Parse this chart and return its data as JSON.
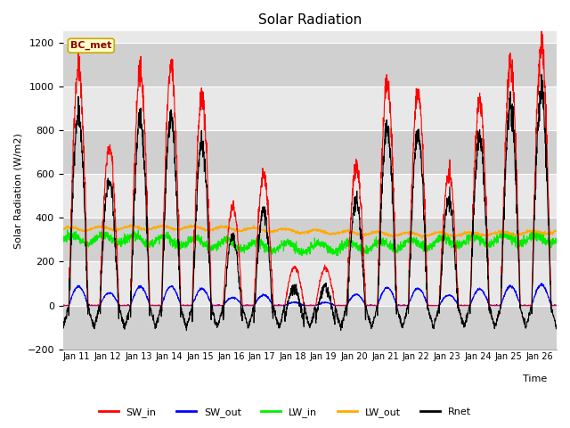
{
  "title": "Solar Radiation",
  "ylabel": "Solar Radiation (W/m2)",
  "xlabel": "Time",
  "annotation": "BC_met",
  "ylim": [
    -200,
    1250
  ],
  "yticks": [
    -200,
    0,
    200,
    400,
    600,
    800,
    1000,
    1200
  ],
  "series": {
    "SW_in": {
      "color": "#ff0000",
      "lw": 0.8
    },
    "SW_out": {
      "color": "#0000ff",
      "lw": 0.8
    },
    "LW_in": {
      "color": "#00ee00",
      "lw": 0.8
    },
    "LW_out": {
      "color": "#ffaa00",
      "lw": 0.8
    },
    "Rnet": {
      "color": "#000000",
      "lw": 0.8
    }
  },
  "xticklabels": [
    "Jan 11",
    "Jan 12",
    "Jan 13",
    "Jan 14",
    "Jan 15",
    "Jan 16",
    "Jan 17",
    "Jan 18",
    "Jan 19",
    "Jan 20",
    "Jan 21",
    "Jan 22",
    "Jan 23",
    "Jan 24",
    "Jan 25",
    "Jan 26"
  ],
  "fig_bg": "#ffffff",
  "plot_bg": "#e8e8e8",
  "band_color": "#d0d0d0",
  "grid_color": "#ffffff",
  "n_days": 16,
  "pts_per_day": 144,
  "sw_in_peaks": [
    1080,
    720,
    1070,
    1080,
    950,
    450,
    590,
    175,
    170,
    630,
    1020,
    975,
    600,
    940,
    1100,
    1180
  ]
}
